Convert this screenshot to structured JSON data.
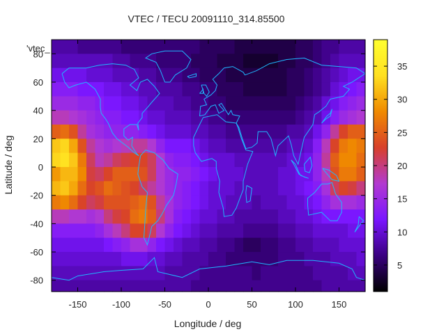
{
  "chart_data": {
    "type": "heatmap",
    "title": "VTEC / TECU 20091110_314.85500",
    "xlabel": "Longitude / deg",
    "ylabel": "Latitude / deg",
    "key_label": "'vtec_",
    "xlim": [
      -180,
      180
    ],
    "ylim": [
      -88,
      90
    ],
    "x_ticks": [
      -150,
      -100,
      -50,
      0,
      50,
      100,
      150
    ],
    "y_ticks": [
      -80,
      -60,
      -40,
      -20,
      0,
      20,
      40,
      60,
      80
    ],
    "colorbar": {
      "range": [
        1,
        39
      ],
      "ticks": [
        5,
        10,
        15,
        20,
        25,
        30,
        35
      ],
      "colormap": [
        "#000000",
        "#3a0080",
        "#7a16ff",
        "#b23ad0",
        "#d8402a",
        "#f08a00",
        "#ffe020",
        "#ffff30"
      ]
    },
    "coastline_color": "#1fb8ff",
    "vtec_grid": {
      "lats": [
        85,
        75,
        65,
        55,
        45,
        35,
        25,
        15,
        5,
        -5,
        -15,
        -25,
        -35,
        -45,
        -55,
        -65,
        -75,
        -85
      ],
      "lons": [
        -175,
        -165,
        -155,
        -145,
        -135,
        -125,
        -115,
        -105,
        -95,
        -85,
        -75,
        -65,
        -55,
        -45,
        -35,
        -25,
        -15,
        -5,
        5,
        15,
        25,
        35,
        45,
        55,
        65,
        75,
        85,
        95,
        105,
        115,
        125,
        135,
        145,
        155,
        165,
        175
      ],
      "values": [
        [
          8,
          8,
          8,
          7,
          7,
          7,
          7,
          7,
          6,
          6,
          6,
          6,
          6,
          6,
          6,
          6,
          6,
          5,
          5,
          5,
          5,
          4,
          4,
          4,
          4,
          4,
          4,
          4,
          5,
          5,
          6,
          7,
          7,
          8,
          8,
          8
        ],
        [
          9,
          9,
          9,
          9,
          9,
          9,
          9,
          8,
          8,
          7,
          7,
          7,
          6,
          6,
          6,
          6,
          5,
          5,
          5,
          4,
          4,
          4,
          3,
          3,
          3,
          3,
          4,
          4,
          5,
          5,
          6,
          7,
          8,
          9,
          9,
          9
        ],
        [
          11,
          11,
          11,
          11,
          10,
          10,
          10,
          9,
          9,
          9,
          8,
          8,
          7,
          7,
          7,
          6,
          6,
          5,
          5,
          5,
          4,
          4,
          4,
          4,
          4,
          4,
          4,
          5,
          5,
          6,
          7,
          8,
          9,
          10,
          11,
          11
        ],
        [
          13,
          13,
          13,
          12,
          12,
          12,
          11,
          11,
          10,
          10,
          9,
          9,
          8,
          8,
          8,
          7,
          7,
          6,
          6,
          5,
          5,
          5,
          4,
          4,
          4,
          4,
          4,
          5,
          5,
          6,
          7,
          8,
          10,
          11,
          12,
          13
        ],
        [
          15,
          15,
          15,
          14,
          14,
          13,
          12,
          12,
          11,
          11,
          10,
          9,
          9,
          9,
          8,
          8,
          7,
          7,
          6,
          6,
          5,
          5,
          5,
          5,
          5,
          5,
          5,
          5,
          6,
          7,
          8,
          10,
          11,
          13,
          14,
          15
        ],
        [
          18,
          18,
          17,
          16,
          15,
          14,
          13,
          13,
          12,
          12,
          11,
          10,
          10,
          9,
          9,
          9,
          8,
          8,
          7,
          7,
          6,
          6,
          6,
          6,
          6,
          6,
          6,
          6,
          7,
          8,
          9,
          11,
          13,
          15,
          16,
          17
        ],
        [
          25,
          26,
          24,
          19,
          16,
          15,
          14,
          14,
          14,
          14,
          13,
          12,
          11,
          10,
          10,
          10,
          9,
          9,
          8,
          8,
          7,
          7,
          7,
          7,
          7,
          7,
          7,
          8,
          8,
          9,
          11,
          14,
          19,
          23,
          25,
          25
        ],
        [
          32,
          33,
          30,
          24,
          19,
          17,
          16,
          17,
          18,
          19,
          19,
          17,
          14,
          12,
          12,
          12,
          11,
          10,
          9,
          9,
          8,
          8,
          8,
          8,
          8,
          8,
          8,
          9,
          9,
          10,
          13,
          18,
          23,
          27,
          28,
          27
        ],
        [
          33,
          34,
          32,
          27,
          21,
          18,
          19,
          21,
          22,
          23,
          23,
          21,
          17,
          14,
          13,
          13,
          12,
          11,
          10,
          10,
          10,
          9,
          9,
          9,
          9,
          9,
          9,
          10,
          10,
          11,
          14,
          19,
          25,
          28,
          28,
          26
        ],
        [
          29,
          31,
          31,
          28,
          22,
          21,
          23,
          25,
          25,
          25,
          24,
          21,
          17,
          15,
          14,
          14,
          13,
          12,
          11,
          10,
          10,
          10,
          9,
          9,
          9,
          9,
          10,
          10,
          11,
          11,
          14,
          18,
          24,
          27,
          27,
          25
        ],
        [
          31,
          32,
          30,
          26,
          23,
          24,
          26,
          25,
          24,
          23,
          21,
          19,
          17,
          15,
          14,
          13,
          12,
          11,
          10,
          10,
          10,
          9,
          9,
          9,
          9,
          9,
          10,
          10,
          11,
          12,
          13,
          16,
          21,
          23,
          22,
          20
        ],
        [
          27,
          28,
          26,
          23,
          21,
          22,
          24,
          24,
          24,
          25,
          26,
          24,
          19,
          16,
          14,
          13,
          12,
          11,
          10,
          10,
          9,
          9,
          9,
          8,
          9,
          9,
          9,
          10,
          10,
          11,
          12,
          14,
          16,
          16,
          16,
          15
        ],
        [
          18,
          18,
          17,
          17,
          16,
          17,
          20,
          22,
          23,
          26,
          27,
          25,
          20,
          16,
          13,
          12,
          11,
          10,
          10,
          9,
          9,
          8,
          8,
          8,
          8,
          8,
          9,
          9,
          10,
          10,
          11,
          12,
          12,
          12,
          12,
          12
        ],
        [
          13,
          13,
          13,
          13,
          13,
          14,
          16,
          18,
          20,
          23,
          23,
          21,
          17,
          14,
          12,
          11,
          10,
          9,
          9,
          8,
          8,
          8,
          7,
          7,
          7,
          7,
          8,
          8,
          9,
          9,
          10,
          10,
          10,
          10,
          11,
          11
        ],
        [
          11,
          11,
          11,
          11,
          11,
          11,
          12,
          13,
          14,
          16,
          16,
          14,
          12,
          11,
          10,
          9,
          9,
          8,
          8,
          7,
          7,
          6,
          5,
          5,
          6,
          6,
          7,
          7,
          8,
          8,
          9,
          9,
          9,
          10,
          10,
          10
        ],
        [
          10,
          10,
          10,
          10,
          10,
          10,
          10,
          10,
          11,
          11,
          11,
          10,
          10,
          9,
          9,
          8,
          8,
          8,
          7,
          7,
          6,
          6,
          6,
          6,
          6,
          6,
          7,
          7,
          7,
          8,
          8,
          8,
          9,
          9,
          9,
          10
        ],
        [
          9,
          9,
          9,
          9,
          9,
          9,
          9,
          9,
          9,
          9,
          9,
          9,
          9,
          8,
          8,
          8,
          8,
          7,
          7,
          7,
          7,
          7,
          7,
          6,
          7,
          7,
          7,
          7,
          7,
          7,
          8,
          8,
          8,
          8,
          9,
          9
        ],
        [
          8,
          8,
          8,
          8,
          8,
          8,
          8,
          8,
          8,
          8,
          8,
          8,
          8,
          8,
          8,
          8,
          7,
          7,
          7,
          7,
          7,
          7,
          7,
          7,
          7,
          7,
          7,
          7,
          7,
          7,
          7,
          8,
          8,
          8,
          8,
          8
        ]
      ]
    }
  }
}
